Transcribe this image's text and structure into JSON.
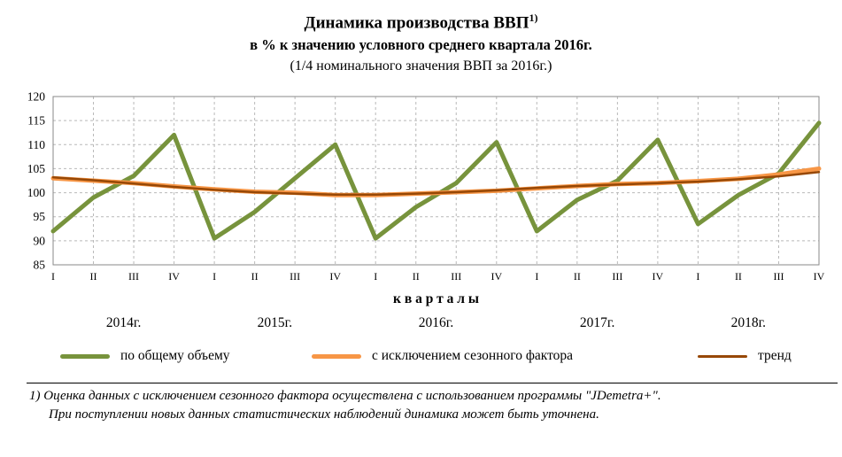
{
  "title": {
    "main": "Динамика производства ВВП",
    "footnote_ref": "1)",
    "subtitle": "в % к значению условного среднего квартала 2016г.",
    "note": "(1/4 номинального значения ВВП за 2016г.)"
  },
  "chart_data": {
    "type": "line",
    "x_axis_title": "к в а р т а л ы",
    "quarter_labels": [
      "I",
      "II",
      "III",
      "IV",
      "I",
      "II",
      "III",
      "IV",
      "I",
      "II",
      "III",
      "IV",
      "I",
      "II",
      "III",
      "IV",
      "I",
      "II",
      "III",
      "IV"
    ],
    "year_labels": [
      "2014г.",
      "2015г.",
      "2016г.",
      "2017г.",
      "2018г."
    ],
    "ylim": [
      85,
      120
    ],
    "yticks": [
      85,
      90,
      95,
      100,
      105,
      110,
      115,
      120
    ],
    "grid": "dashed-both",
    "legend_position": "bottom",
    "series": [
      {
        "key": "total",
        "name": "по общему объему",
        "color": "#77933C",
        "width": 5,
        "values": [
          92,
          99,
          103.5,
          112,
          90.5,
          96,
          103,
          110,
          90.5,
          97,
          102,
          110.5,
          92,
          98.5,
          102.5,
          111,
          93.5,
          99.5,
          104,
          114.5
        ]
      },
      {
        "key": "seasonally-adjusted",
        "name": "с исключением  сезонного фактора",
        "color": "#F79646",
        "width": 5,
        "values": [
          103,
          102.5,
          102,
          101.3,
          100.7,
          100.2,
          100,
          99.5,
          99.5,
          99.8,
          100.1,
          100.4,
          100.9,
          101.4,
          101.8,
          102,
          102.4,
          102.9,
          103.8,
          105
        ]
      },
      {
        "key": "trend",
        "name": "тренд",
        "color": "#974806",
        "width": 2.5,
        "values": [
          103.2,
          102.6,
          101.9,
          101.2,
          100.6,
          100.1,
          99.8,
          99.6,
          99.6,
          99.8,
          100.1,
          100.5,
          101,
          101.4,
          101.7,
          102,
          102.3,
          102.8,
          103.4,
          104.3
        ]
      }
    ]
  },
  "footnote": {
    "line1": "1) Оценка данных с исключением сезонного фактора осуществлена с использованием программы \"JDemetra+\".",
    "line2": "При поступлении новых данных статистических наблюдений динамика может быть уточнена."
  }
}
